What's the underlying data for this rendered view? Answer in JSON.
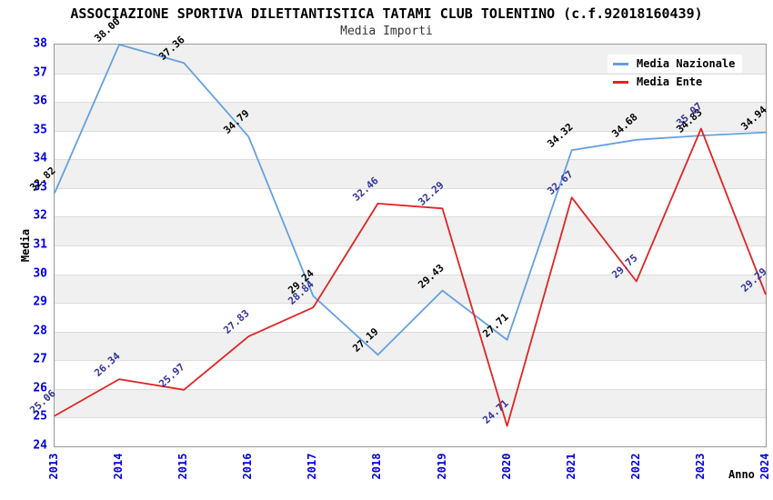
{
  "title": "ASSOCIAZIONE SPORTIVA DILETTANTISTICA TATAMI CLUB TOLENTINO (c.f.92018160439)",
  "subtitle": "Media Importi",
  "axes": {
    "y_label": "Media",
    "x_label": "Anno",
    "y_ticks": [
      38,
      37,
      36,
      35,
      34,
      33,
      32,
      31,
      30,
      29,
      28,
      27,
      26,
      25,
      24
    ],
    "tick_color": "#0000e0"
  },
  "legend": {
    "position": "top-right",
    "entries": [
      {
        "label": "Media Nazionale",
        "color": "#64a0e1"
      },
      {
        "label": "Media Ente",
        "color": "#e02424"
      }
    ]
  },
  "colors": {
    "band_gray": "#f0f0f0",
    "band_white": "#ffffff",
    "gridline": "#dcdcdc",
    "frame": "#999999"
  },
  "chart_data": {
    "type": "line",
    "title": "Media Importi",
    "xlabel": "Anno",
    "ylabel": "Media",
    "x": [
      2013,
      2014,
      2015,
      2016,
      2017,
      2018,
      2019,
      2020,
      2021,
      2022,
      2023,
      2024
    ],
    "ylim": [
      24,
      38
    ],
    "grid": "horizontal-bands",
    "legend_position": "top-right",
    "series": [
      {
        "name": "Media Nazionale",
        "color": "#64a0e1",
        "label_color": "#000000",
        "values": [
          32.82,
          38.0,
          37.36,
          34.79,
          29.24,
          27.19,
          29.43,
          27.71,
          34.32,
          34.68,
          34.83,
          34.94
        ]
      },
      {
        "name": "Media Ente",
        "color": "#e02424",
        "label_color": "#333399",
        "values": [
          25.06,
          26.34,
          25.97,
          27.83,
          28.84,
          32.46,
          32.29,
          24.71,
          32.67,
          29.75,
          35.07,
          29.29
        ]
      }
    ]
  }
}
